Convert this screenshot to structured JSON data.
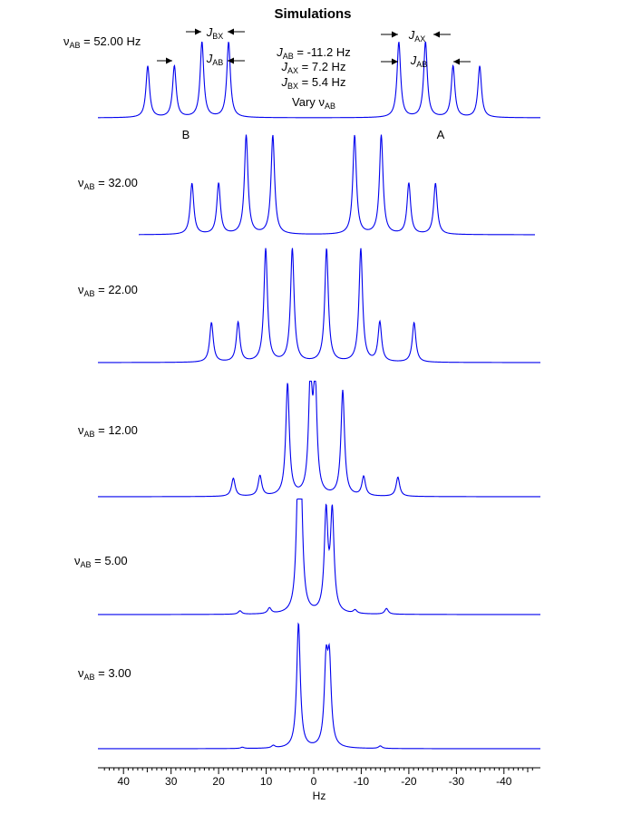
{
  "chart_data": {
    "type": "line",
    "title": "Simulations",
    "xlabel": "Hz",
    "xlim": [
      45,
      -47
    ],
    "x_reversed": true,
    "xticks": [
      40,
      30,
      20,
      10,
      0,
      -10,
      -20,
      -30,
      -40
    ],
    "xtick_labels": [
      "40",
      "30",
      "20",
      "10",
      "0",
      "-10",
      "-20",
      "-30",
      "-40"
    ],
    "line_color": "#0000ee",
    "annotations": {
      "params": [
        {
          "sym": "J",
          "sub": "AB",
          "rest": " = -11.2 Hz"
        },
        {
          "sym": "J",
          "sub": "AX",
          "rest": " = 7.2 Hz"
        },
        {
          "sym": "J",
          "sub": "BX",
          "rest": " = 5.4 Hz"
        }
      ],
      "vary": {
        "text": "Vary ",
        "sym": "ν",
        "sub": "AB"
      },
      "label_B": "B",
      "label_A": "A",
      "coupling_tags": [
        {
          "sym": "J",
          "sub": "BX"
        },
        {
          "sym": "J",
          "sub": "AB"
        },
        {
          "sym": "J",
          "sub": "AX"
        },
        {
          "sym": "J",
          "sub": "AB"
        }
      ]
    },
    "series": [
      {
        "name_sym": "ν",
        "name_sub": "AB",
        "name_value": " = 52.00 Hz",
        "peaks": [
          {
            "x": 34.9,
            "h": 0.58
          },
          {
            "x": 29.3,
            "h": 0.58
          },
          {
            "x": 23.5,
            "h": 0.85
          },
          {
            "x": 17.9,
            "h": 0.85
          },
          {
            "x": -17.9,
            "h": 0.85
          },
          {
            "x": -23.5,
            "h": 0.85
          },
          {
            "x": -29.3,
            "h": 0.58
          },
          {
            "x": -34.9,
            "h": 0.58
          }
        ]
      },
      {
        "name_sym": "ν",
        "name_sub": "AB",
        "name_value": " = 32.00",
        "peaks": [
          {
            "x": 25.6,
            "h": 0.49
          },
          {
            "x": 20.0,
            "h": 0.49
          },
          {
            "x": 14.2,
            "h": 0.95
          },
          {
            "x": 8.6,
            "h": 0.95
          },
          {
            "x": -8.6,
            "h": 0.95
          },
          {
            "x": -14.2,
            "h": 0.95
          },
          {
            "x": -20.0,
            "h": 0.49
          },
          {
            "x": -25.6,
            "h": 0.49
          }
        ]
      },
      {
        "name_sym": "ν",
        "name_sub": "AB",
        "name_value": " = 22.00",
        "peaks": [
          {
            "x": 21.5,
            "h": 0.35
          },
          {
            "x": 15.9,
            "h": 0.35
          },
          {
            "x": 10.1,
            "h": 1.0
          },
          {
            "x": 4.5,
            "h": 1.0
          },
          {
            "x": -2.7,
            "h": 1.0
          },
          {
            "x": -9.9,
            "h": 1.0
          },
          {
            "x": -13.9,
            "h": 0.35
          },
          {
            "x": -21.1,
            "h": 0.35
          }
        ]
      },
      {
        "name_sym": "ν",
        "name_sub": "AB",
        "name_value": " = 12.00",
        "peaks": [
          {
            "x": 16.9,
            "h": 0.16
          },
          {
            "x": 11.3,
            "h": 0.18
          },
          {
            "x": 5.5,
            "h": 0.99
          },
          {
            "x": 0.7,
            "h": 1.0
          },
          {
            "x": -0.3,
            "h": 0.97
          },
          {
            "x": -6.1,
            "h": 0.93
          },
          {
            "x": -10.5,
            "h": 0.17
          },
          {
            "x": -17.7,
            "h": 0.17
          }
        ]
      },
      {
        "name_sym": "ν",
        "name_sub": "AB",
        "name_value": " = 5.00",
        "peaks": [
          {
            "x": 15.5,
            "h": 0.03
          },
          {
            "x": 9.3,
            "h": 0.05
          },
          {
            "x": 3.3,
            "h": 0.98
          },
          {
            "x": 2.7,
            "h": 0.98
          },
          {
            "x": -2.6,
            "h": 0.87
          },
          {
            "x": -3.9,
            "h": 0.87
          },
          {
            "x": -8.7,
            "h": 0.03
          },
          {
            "x": -15.3,
            "h": 0.05
          }
        ]
      },
      {
        "name_sym": "ν",
        "name_sub": "AB",
        "name_value": " = 3.00",
        "peaks": [
          {
            "x": 15.0,
            "h": 0.01
          },
          {
            "x": 8.5,
            "h": 0.02
          },
          {
            "x": 3.2,
            "h": 1.0
          },
          {
            "x": -2.6,
            "h": 0.63
          },
          {
            "x": -3.3,
            "h": 0.63
          },
          {
            "x": -14.0,
            "h": 0.02
          }
        ]
      }
    ]
  }
}
